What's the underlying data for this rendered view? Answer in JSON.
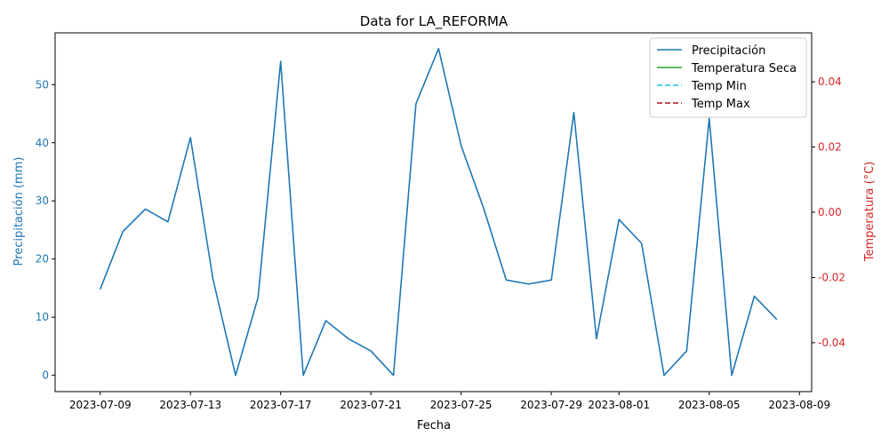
{
  "chart_data": {
    "type": "line",
    "title": "Data for LA_REFORMA",
    "xlabel": "Fecha",
    "ylabel_left": "Precipitación (mm)",
    "ylabel_right": "Temperatura (°C)",
    "x_ticks": [
      "2023-07-09",
      "2023-07-13",
      "2023-07-17",
      "2023-07-21",
      "2023-07-25",
      "2023-07-29",
      "2023-08-01",
      "2023-08-05",
      "2023-08-09"
    ],
    "y_left_ticks": [
      0,
      10,
      20,
      30,
      40,
      50
    ],
    "y_right_ticks": [
      "-0.04",
      "-0.02",
      "0.00",
      "0.02",
      "0.04"
    ],
    "ylim_left": [
      -2.8,
      58.9
    ],
    "ylim_right": [
      -0.055,
      0.055
    ],
    "legend_position": "top-right",
    "grid": false,
    "colors": {
      "precip": "#1f77b4",
      "temp_seca": "#2ca02c",
      "temp_min": "#17becf",
      "temp_max": "#b2182b",
      "right_axis": "#d62728",
      "left_axis": "#1f77b4"
    },
    "series": [
      {
        "name": "Precipitación",
        "axis": "left",
        "style": "solid",
        "x": [
          "2023-07-09",
          "2023-07-10",
          "2023-07-11",
          "2023-07-12",
          "2023-07-13",
          "2023-07-14",
          "2023-07-15",
          "2023-07-16",
          "2023-07-17",
          "2023-07-18",
          "2023-07-19",
          "2023-07-20",
          "2023-07-21",
          "2023-07-22",
          "2023-07-23",
          "2023-07-24",
          "2023-07-25",
          "2023-07-26",
          "2023-07-27",
          "2023-07-28",
          "2023-07-29",
          "2023-07-30",
          "2023-07-31",
          "2023-08-01",
          "2023-08-02",
          "2023-08-03",
          "2023-08-04",
          "2023-08-05",
          "2023-08-06",
          "2023-08-07",
          "2023-08-08"
        ],
        "values": [
          14.8,
          24.7,
          28.6,
          26.4,
          40.9,
          16.5,
          0.0,
          13.4,
          54.0,
          0.0,
          9.4,
          6.3,
          4.2,
          0.0,
          46.7,
          56.2,
          39.5,
          28.7,
          16.4,
          15.7,
          16.4,
          45.2,
          6.3,
          26.8,
          22.7,
          0.0,
          4.2,
          44.2,
          0.0,
          13.6,
          9.6
        ]
      },
      {
        "name": "Temperatura Seca",
        "axis": "right",
        "style": "solid",
        "values": []
      },
      {
        "name": "Temp Min",
        "axis": "right",
        "style": "dashed",
        "values": []
      },
      {
        "name": "Temp Max",
        "axis": "right",
        "style": "dashed",
        "values": []
      }
    ]
  }
}
